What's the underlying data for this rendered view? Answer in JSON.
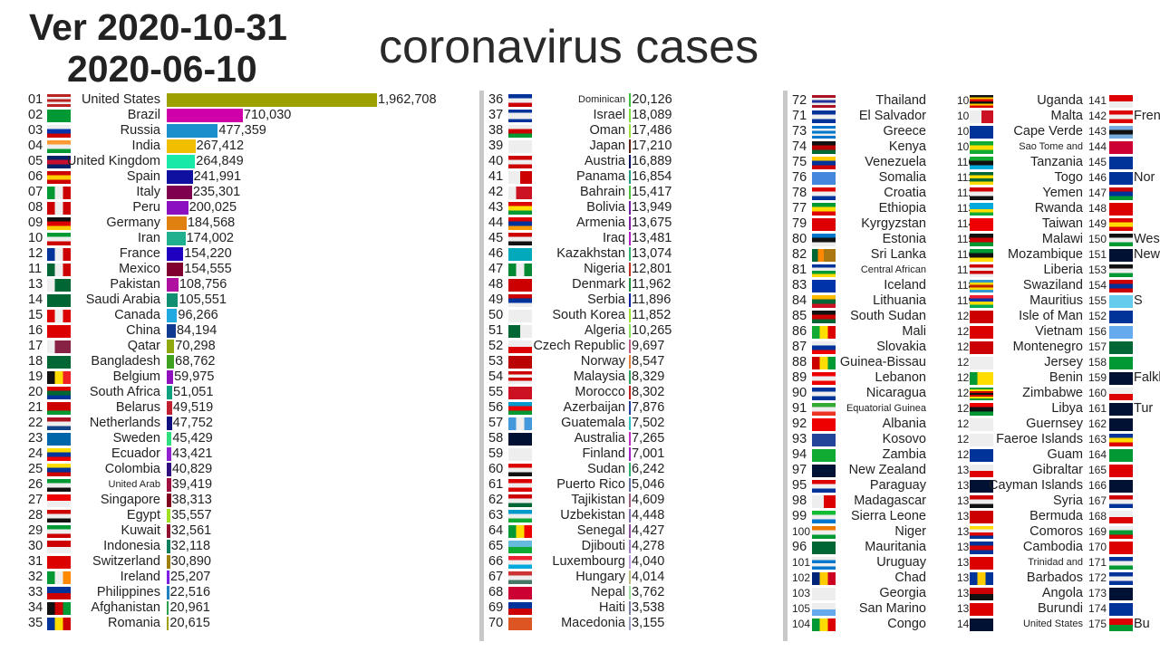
{
  "header": {
    "version": "Ver 2020-10-31",
    "date": "2020-06-10",
    "title": "coronavirus cases"
  },
  "col1": [
    {
      "r": "01",
      "n": "United States",
      "v": "1,962,708",
      "c": "#9ca000",
      "f": "h:#b22,#eee,#b22,#eee,#b22"
    },
    {
      "r": "02",
      "n": "Brazil",
      "v": "710,030",
      "c": "#d000a8",
      "f": "#093"
    },
    {
      "r": "03",
      "n": "Russia",
      "v": "477,359",
      "c": "#1a8fcc",
      "f": "h:#eee,#03a,#c00"
    },
    {
      "r": "04",
      "n": "India",
      "v": "267,412",
      "c": "#f0c000",
      "f": "h:#f93,#eee,#093"
    },
    {
      "r": "05",
      "n": "United Kingdom",
      "v": "264,849",
      "c": "#18e8a8",
      "f": "h:#012169,#c8102e,#012169"
    },
    {
      "r": "06",
      "n": "Spain",
      "v": "241,991",
      "c": "#1010a0",
      "f": "h:#c00,#fc0,#c00"
    },
    {
      "r": "07",
      "n": "Italy",
      "v": "235,301",
      "c": "#800050",
      "f": "v:#093,#eee,#c00"
    },
    {
      "r": "08",
      "n": "Peru",
      "v": "200,025",
      "c": "#8a10c0",
      "f": "v:#c00,#eee,#c00"
    },
    {
      "r": "09",
      "n": "Germany",
      "v": "184,568",
      "c": "#e08010",
      "f": "h:#111,#d00,#fc0"
    },
    {
      "r": "10",
      "n": "Iran",
      "v": "174,002",
      "c": "#20b090",
      "f": "h:#093,#eee,#c00"
    },
    {
      "r": "12",
      "n": "France",
      "v": "154,220",
      "c": "#2000c0",
      "f": "v:#039,#eee,#c00"
    },
    {
      "r": "11",
      "n": "Mexico",
      "v": "154,555",
      "c": "#800030",
      "f": "v:#063,#eee,#c00"
    },
    {
      "r": "13",
      "n": "Pakistan",
      "v": "108,756",
      "c": "#b010a0",
      "f": "v:#eee,#063,#063"
    },
    {
      "r": "14",
      "n": "Saudi Arabia",
      "v": "105,551",
      "c": "#109070",
      "f": "#063"
    },
    {
      "r": "15",
      "n": "Canada",
      "v": "96,266",
      "c": "#20a8e0",
      "f": "v:#d00,#eee,#d00"
    },
    {
      "r": "16",
      "n": "China",
      "v": "84,194",
      "c": "#103a90",
      "f": "#d00"
    },
    {
      "r": "17",
      "n": "Qatar",
      "v": "70,298",
      "c": "#90a810",
      "f": "v:#eee,#824,#824"
    },
    {
      "r": "18",
      "n": "Bangladesh",
      "v": "68,762",
      "c": "#40a020",
      "f": "#063"
    },
    {
      "r": "19",
      "n": "Belgium",
      "v": "59,975",
      "c": "#9010c0",
      "f": "v:#111,#fd0,#e22"
    },
    {
      "r": "20",
      "n": "South Africa",
      "v": "51,051",
      "c": "#10a080",
      "f": "h:#d00,#063,#039"
    },
    {
      "r": "21",
      "n": "Belarus",
      "v": "49,519",
      "c": "#c02030",
      "f": "h:#c00,#c00,#093"
    },
    {
      "r": "22",
      "n": "Netherlands",
      "v": "47,752",
      "c": "#101080",
      "f": "h:#a12,#eee,#148"
    },
    {
      "r": "23",
      "n": "Sweden",
      "v": "45,429",
      "c": "#30e080",
      "f": "#06a"
    },
    {
      "r": "24",
      "n": "Ecuador",
      "v": "43,421",
      "c": "#9020d0",
      "f": "h:#fd0,#039,#e00"
    },
    {
      "r": "25",
      "n": "Colombia",
      "v": "40,829",
      "c": "#301080",
      "f": "h:#fd0,#039,#c00"
    },
    {
      "r": "26",
      "n": "United Arab",
      "v": "39,419",
      "c": "#a01040",
      "f": "h:#093,#eee,#111"
    },
    {
      "r": "27",
      "n": "Singapore",
      "v": "38,313",
      "c": "#800020",
      "f": "h:#e00,#eee"
    },
    {
      "r": "28",
      "n": "Egypt",
      "v": "35,557",
      "c": "#a0e020",
      "f": "h:#c00,#eee,#111"
    },
    {
      "r": "29",
      "n": "Kuwait",
      "v": "32,561",
      "c": "#901030",
      "f": "h:#093,#eee,#c00"
    },
    {
      "r": "30",
      "n": "Indonesia",
      "v": "32,118",
      "c": "#108060",
      "f": "h:#c00,#eee"
    },
    {
      "r": "31",
      "n": "Switzerland",
      "v": "30,890",
      "c": "#a08010",
      "f": "#d00"
    },
    {
      "r": "32",
      "n": "Ireland",
      "v": "25,207",
      "c": "#8020e0",
      "f": "v:#093,#eee,#f80"
    },
    {
      "r": "33",
      "n": "Philippines",
      "v": "22,516",
      "c": "#2080c0",
      "f": "h:#039,#c00"
    },
    {
      "r": "34",
      "n": "Afghanistan",
      "v": "20,961",
      "c": "#30a050",
      "f": "v:#111,#c00,#093"
    },
    {
      "r": "35",
      "n": "Romania",
      "v": "20,615",
      "c": "#a0a010",
      "f": "v:#039,#fd0,#c00"
    }
  ],
  "col2": [
    {
      "r": "36",
      "n": "Dominican",
      "v": "20,126",
      "c": "#40c040",
      "f": "h:#039,#eee,#c00"
    },
    {
      "r": "37",
      "n": "Israel",
      "v": "18,089",
      "c": "#80e040",
      "f": "h:#039,#eee,#eee,#039"
    },
    {
      "r": "38",
      "n": "Oman",
      "v": "17,486",
      "c": "#a0e040",
      "f": "h:#eee,#c00,#093"
    },
    {
      "r": "39",
      "n": "Japan",
      "v": "17,210",
      "c": "#602010",
      "f": "#eee"
    },
    {
      "r": "40",
      "n": "Austria",
      "v": "16,889",
      "c": "#101060",
      "f": "h:#c00,#eee,#c00"
    },
    {
      "r": "41",
      "n": "Panama",
      "v": "16,854",
      "c": "#20a080",
      "f": "v:#eee,#c00"
    },
    {
      "r": "42",
      "n": "Bahrain",
      "v": "15,417",
      "c": "#50c040",
      "f": "v:#eee,#c12,#c12"
    },
    {
      "r": "43",
      "n": "Bolivia",
      "v": "13,949",
      "c": "#7020a0",
      "f": "h:#d00,#fd0,#093"
    },
    {
      "r": "44",
      "n": "Armenia",
      "v": "13,675",
      "c": "#8020a0",
      "f": "h:#d00,#039,#f90"
    },
    {
      "r": "45",
      "n": "Iraq",
      "v": "13,481",
      "c": "#b020c0",
      "f": "h:#c00,#eee,#111"
    },
    {
      "r": "46",
      "n": "Kazakhstan",
      "v": "13,074",
      "c": "#30b070",
      "f": "#0ab"
    },
    {
      "r": "47",
      "n": "Nigeria",
      "v": "12,801",
      "c": "#c03020",
      "f": "v:#083,#eee,#083"
    },
    {
      "r": "48",
      "n": "Denmark",
      "v": "11,962",
      "c": "#209040",
      "f": "#c00"
    },
    {
      "r": "49",
      "n": "Serbia",
      "v": "11,896",
      "c": "#1020a0",
      "f": "h:#c00,#039,#eee"
    },
    {
      "r": "50",
      "n": "South Korea",
      "v": "11,852",
      "c": "#a0e030",
      "f": "#eee"
    },
    {
      "r": "51",
      "n": "Algeria",
      "v": "10,265",
      "c": "#90e060",
      "f": "v:#063,#eee"
    },
    {
      "r": "52",
      "n": "Czech Republic",
      "v": "9,697",
      "c": "#c06080",
      "f": "h:#eee,#d00"
    },
    {
      "r": "53",
      "n": "Norway",
      "v": "8,547",
      "c": "#e08040",
      "f": "#b00"
    },
    {
      "r": "54",
      "n": "Malaysia",
      "v": "8,329",
      "c": "#30a060",
      "f": "h:#c00,#eee,#c00,#eee"
    },
    {
      "r": "55",
      "n": "Morocco",
      "v": "8,302",
      "c": "#c02020",
      "f": "#c12"
    },
    {
      "r": "56",
      "n": "Azerbaijan",
      "v": "7,876",
      "c": "#2040a0",
      "f": "h:#09c,#e00,#093"
    },
    {
      "r": "57",
      "n": "Guatemala",
      "v": "7,502",
      "c": "#30c0c0",
      "f": "v:#49d,#eee,#49d"
    },
    {
      "r": "58",
      "n": "Australia",
      "v": "7,265",
      "c": "#c030c0",
      "f": "#013"
    },
    {
      "r": "59",
      "n": "Finland",
      "v": "7,001",
      "c": "#a020c0",
      "f": "#eee"
    },
    {
      "r": "60",
      "n": "Sudan",
      "v": "6,242",
      "c": "#30b070",
      "f": "h:#d00,#eee,#111"
    },
    {
      "r": "61",
      "n": "Puerto Rico",
      "v": "5,046",
      "c": "#6070a0",
      "f": "h:#d00,#eee,#d00"
    },
    {
      "r": "62",
      "n": "Tajikistan",
      "v": "4,609",
      "c": "#a06080",
      "f": "h:#c00,#eee,#063"
    },
    {
      "r": "63",
      "n": "Uzbekistan",
      "v": "4,448",
      "c": "#8070b0",
      "f": "h:#09c,#eee,#1a3"
    },
    {
      "r": "64",
      "n": "Senegal",
      "v": "4,427",
      "c": "#9050a0",
      "f": "v:#093,#fd0,#e00"
    },
    {
      "r": "65",
      "n": "Djibouti",
      "v": "4,278",
      "c": "#a080c0",
      "f": "h:#6bd,#1a3"
    },
    {
      "r": "66",
      "n": "Luxembourg",
      "v": "4,040",
      "c": "#c0a0e0",
      "f": "h:#e23,#eee,#0ad"
    },
    {
      "r": "67",
      "n": "Hungary",
      "v": "4,014",
      "c": "#c0c080",
      "f": "h:#c33,#eee,#476"
    },
    {
      "r": "68",
      "n": "Nepal",
      "v": "3,762",
      "c": "#a0e0a0",
      "f": "#c03"
    },
    {
      "r": "69",
      "n": "Haiti",
      "v": "3,538",
      "c": "#8080a0",
      "f": "h:#039,#c00"
    },
    {
      "r": "70",
      "n": "Macedonia",
      "v": "3,155",
      "c": "#a0a0c0",
      "f": "#d52"
    }
  ],
  "col3": [
    {
      "r": "72",
      "n": "Thailand",
      "f": "h:#a12,#eee,#239,#eee,#a12"
    },
    {
      "r": "71",
      "n": "El Salvador",
      "f": "h:#039,#eee,#039"
    },
    {
      "r": "73",
      "n": "Greece",
      "f": "h:#07c,#eee,#07c,#eee,#07c"
    },
    {
      "r": "74",
      "n": "Kenya",
      "f": "h:#111,#b00,#063"
    },
    {
      "r": "75",
      "n": "Venezuela",
      "f": "h:#fc0,#039,#c00"
    },
    {
      "r": "76",
      "n": "Somalia",
      "f": "#48d"
    },
    {
      "r": "78",
      "n": "Croatia",
      "f": "h:#d00,#eee,#039"
    },
    {
      "r": "77",
      "n": "Ethiopia",
      "f": "h:#093,#fd0,#d00"
    },
    {
      "r": "79",
      "n": "Kyrgyzstan",
      "f": "#d00"
    },
    {
      "r": "80",
      "n": "Estonia",
      "f": "h:#07c,#111,#eee"
    },
    {
      "r": "82",
      "n": "Sri Lanka",
      "f": "v:#063,#f80,#a71,#a71"
    },
    {
      "r": "81",
      "n": "Central African",
      "f": "h:#039,#eee,#093,#fd0"
    },
    {
      "r": "83",
      "n": "Iceland",
      "f": "#03a"
    },
    {
      "r": "84",
      "n": "Lithuania",
      "f": "h:#fb0,#063,#c12"
    },
    {
      "r": "85",
      "n": "South Sudan",
      "f": "h:#111,#c00,#063"
    },
    {
      "r": "86",
      "n": "Mali",
      "f": "v:#1a3,#fd0,#d00"
    },
    {
      "r": "87",
      "n": "Slovakia",
      "f": "h:#eee,#039,#e00"
    },
    {
      "r": "88",
      "n": "Guinea-Bissau",
      "f": "v:#c00,#fd0,#093"
    },
    {
      "r": "89",
      "n": "Lebanon",
      "f": "h:#e00,#eee,#e00"
    },
    {
      "r": "90",
      "n": "Nicaragua",
      "f": "h:#039,#eee,#039"
    },
    {
      "r": "91",
      "n": "Equatorial Guinea",
      "f": "h:#3a3,#eee,#e32"
    },
    {
      "r": "92",
      "n": "Albania",
      "f": "#e00"
    },
    {
      "r": "93",
      "n": "Kosovo",
      "f": "#249"
    },
    {
      "r": "94",
      "n": "Zambia",
      "f": "#1a3"
    },
    {
      "r": "97",
      "n": "New Zealand",
      "f": "#013"
    },
    {
      "r": "95",
      "n": "Paraguay",
      "f": "h:#d00,#eee,#039"
    },
    {
      "r": "98",
      "n": "Madagascar",
      "f": "v:#eee,#d00"
    },
    {
      "r": "99",
      "n": "Sierra Leone",
      "f": "h:#1b3,#eee,#07c"
    },
    {
      "r": "100",
      "n": "Niger",
      "f": "h:#e70,#eee,#093"
    },
    {
      "r": "96",
      "n": "Mauritania",
      "f": "#063"
    },
    {
      "r": "101",
      "n": "Uruguay",
      "f": "h:#eee,#07c,#eee,#07c"
    },
    {
      "r": "102",
      "n": "Chad",
      "f": "v:#027,#fc0,#c02"
    },
    {
      "r": "103",
      "n": "Georgia",
      "f": "#eee"
    },
    {
      "r": "105",
      "n": "San Marino",
      "f": "h:#eee,#6ae"
    },
    {
      "r": "104",
      "n": "Congo",
      "f": "v:#093,#fd0,#d00"
    }
  ],
  "col4": [
    {
      "r": "106",
      "n": "Uganda",
      "f": "h:#111,#fc0,#d00,#111,#fc0,#d00"
    },
    {
      "r": "107",
      "n": "Malta",
      "f": "v:#eee,#c12"
    },
    {
      "r": "108",
      "n": "Cape Verde",
      "f": "#039"
    },
    {
      "r": "109",
      "n": "Sao Tome and",
      "f": "h:#1a3,#fd0,#1a3"
    },
    {
      "r": "110",
      "n": "Tanzania",
      "f": "h:#1a3,#111,#0ad"
    },
    {
      "r": "111",
      "n": "Togo",
      "f": "h:#063,#fd0,#063,#fd0"
    },
    {
      "r": "112",
      "n": "Yemen",
      "f": "h:#c00,#eee,#111"
    },
    {
      "r": "113",
      "n": "Rwanda",
      "f": "h:#0ad,#0ad,#fd0,#1a3"
    },
    {
      "r": "114",
      "n": "Taiwan",
      "f": "#e00"
    },
    {
      "r": "115",
      "n": "Malawi",
      "f": "h:#111,#c00,#093"
    },
    {
      "r": "116",
      "n": "Mozambique",
      "f": "h:#093,#111,#fd0"
    },
    {
      "r": "117",
      "n": "Liberia",
      "f": "h:#c00,#eee,#c00,#eee"
    },
    {
      "r": "118",
      "n": "Swaziland",
      "f": "h:#39c,#fd0,#b20,#fd0,#39c"
    },
    {
      "r": "119",
      "n": "Mauritius",
      "f": "h:#e23,#13a,#fd0,#0a5"
    },
    {
      "r": "120",
      "n": "Isle of Man",
      "f": "#c00"
    },
    {
      "r": "121",
      "n": "Vietnam",
      "f": "#d00"
    },
    {
      "r": "122",
      "n": "Montenegro",
      "f": "#c00"
    },
    {
      "r": "123",
      "n": "Jersey",
      "f": "#eee"
    },
    {
      "r": "124",
      "n": "Benin",
      "f": "v:#093,#fd0,#fd0"
    },
    {
      "r": "125",
      "n": "Zimbabwe",
      "f": "h:#093,#fd0,#c00,#111,#c00,#fd0,#093"
    },
    {
      "r": "126",
      "n": "Libya",
      "f": "h:#e00,#111,#093"
    },
    {
      "r": "127",
      "n": "Guernsey",
      "f": "#eee"
    },
    {
      "r": "128",
      "n": "Faeroe Islands",
      "f": "#eee"
    },
    {
      "r": "129",
      "n": "Guam",
      "f": "#039"
    },
    {
      "r": "130",
      "n": "Gibraltar",
      "f": "h:#eee,#d00"
    },
    {
      "r": "131",
      "n": "Cayman Islands",
      "f": "#013"
    },
    {
      "r": "132",
      "n": "Syria",
      "f": "h:#c00,#eee,#111"
    },
    {
      "r": "133",
      "n": "Bermuda",
      "f": "#c00"
    },
    {
      "r": "134",
      "n": "Comoros",
      "f": "h:#fd0,#eee,#d00,#039"
    },
    {
      "r": "135",
      "n": "Cambodia",
      "f": "h:#039,#d00,#039"
    },
    {
      "r": "136",
      "n": "Trinidad and",
      "f": "#d00"
    },
    {
      "r": "137",
      "n": "Barbados",
      "f": "v:#039,#fc0,#039"
    },
    {
      "r": "138",
      "n": "Angola",
      "f": "h:#c00,#111"
    },
    {
      "r": "139",
      "n": "Burundi",
      "f": "#d00"
    },
    {
      "r": "140",
      "n": "United States",
      "f": "#013"
    }
  ],
  "col5": [
    {
      "r": "141",
      "n": "",
      "f": "h:#d00,#eee"
    },
    {
      "r": "142",
      "n": "Frenc",
      "f": "h:#d00,#eee,#d00"
    },
    {
      "r": "143",
      "n": "",
      "f": "h:#7ad,#111,#7ad"
    },
    {
      "r": "144",
      "n": "",
      "f": "#c03"
    },
    {
      "r": "145",
      "n": "",
      "f": "#039"
    },
    {
      "r": "146",
      "n": "Nor",
      "f": "#039"
    },
    {
      "r": "147",
      "n": "",
      "f": "h:#c00,#039,#093"
    },
    {
      "r": "148",
      "n": "",
      "f": "#d00"
    },
    {
      "r": "149",
      "n": "",
      "f": "h:#d00,#fd0,#d00"
    },
    {
      "r": "150",
      "n": "West",
      "f": "h:#111,#eee,#093"
    },
    {
      "r": "151",
      "n": "New",
      "f": "#013"
    },
    {
      "r": "153",
      "n": "",
      "f": "h:#111,#eee,#093"
    },
    {
      "r": "154",
      "n": "",
      "f": "h:#c00,#039,#c00"
    },
    {
      "r": "155",
      "n": "S",
      "f": "#6ce"
    },
    {
      "r": "152",
      "n": "",
      "f": "#039"
    },
    {
      "r": "156",
      "n": "",
      "f": "#6ae"
    },
    {
      "r": "157",
      "n": "",
      "f": "#063"
    },
    {
      "r": "158",
      "n": "",
      "f": "#093"
    },
    {
      "r": "159",
      "n": "Falkl",
      "f": "#013"
    },
    {
      "r": "160",
      "n": "",
      "f": "h:#eee,#d00"
    },
    {
      "r": "161",
      "n": "Tur",
      "f": "#013"
    },
    {
      "r": "162",
      "n": "",
      "f": "#013"
    },
    {
      "r": "163",
      "n": "",
      "f": "h:#039,#fd0,#d00"
    },
    {
      "r": "164",
      "n": "",
      "f": "#093"
    },
    {
      "r": "165",
      "n": "",
      "f": "#d00"
    },
    {
      "r": "166",
      "n": "",
      "f": "#013"
    },
    {
      "r": "167",
      "n": "",
      "f": "h:#c00,#eee,#039"
    },
    {
      "r": "168",
      "n": "",
      "f": "h:#eee,#d00"
    },
    {
      "r": "169",
      "n": "",
      "f": "h:#eee,#093,#d00"
    },
    {
      "r": "170",
      "n": "",
      "f": "#d00"
    },
    {
      "r": "171",
      "n": "",
      "f": "h:#039,#eee,#093"
    },
    {
      "r": "172",
      "n": "",
      "f": "h:#039,#eee,#039"
    },
    {
      "r": "173",
      "n": "",
      "f": "#013"
    },
    {
      "r": "174",
      "n": "",
      "f": "#039"
    },
    {
      "r": "175",
      "n": "Bu",
      "f": "h:#d00,#093"
    }
  ]
}
